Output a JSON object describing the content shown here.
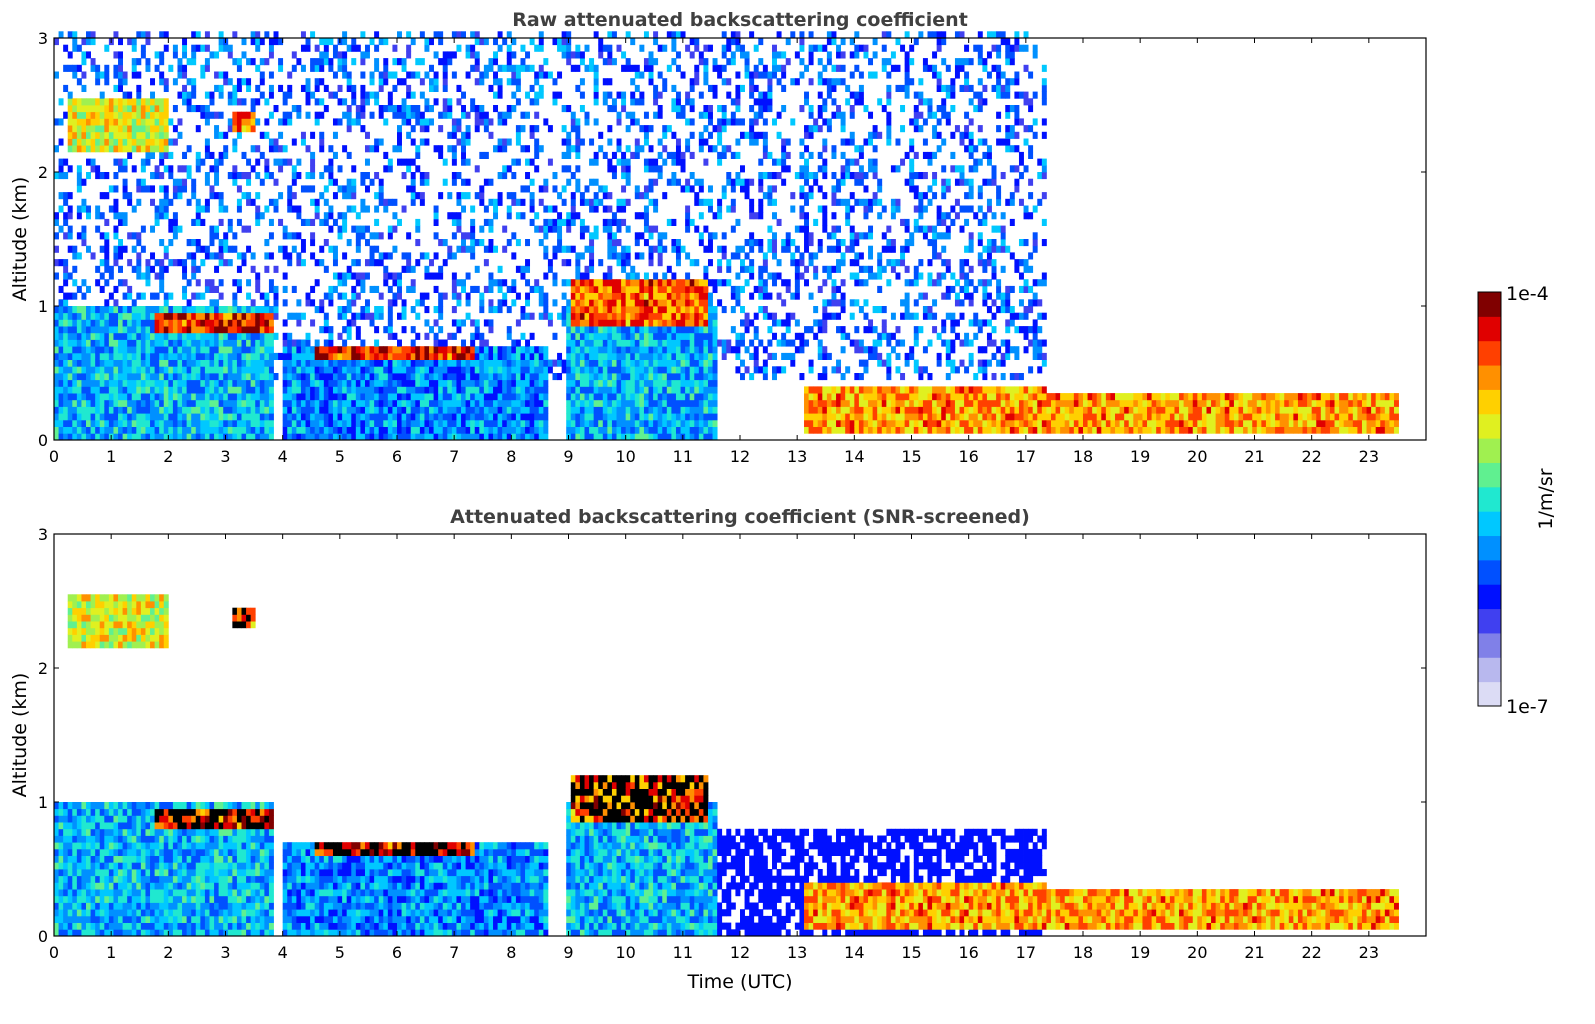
{
  "chart_data": [
    {
      "type": "heatmap",
      "title": "Raw attenuated backscattering coefficient",
      "xlabel": "",
      "ylabel": "Altitude (km)",
      "xlim": [
        0,
        24
      ],
      "ylim": [
        0,
        3
      ],
      "xticks": [
        "0",
        "1",
        "2",
        "3",
        "4",
        "5",
        "6",
        "7",
        "8",
        "9",
        "10",
        "11",
        "12",
        "13",
        "14",
        "15",
        "16",
        "17",
        "18",
        "19",
        "20",
        "21",
        "22",
        "23"
      ],
      "yticks": [
        "0",
        "1",
        "2",
        "3"
      ],
      "layers": [
        {
          "name": "elevated layer",
          "x0": 1.7,
          "x1": 3.8,
          "y0": 0.8,
          "y1": 0.95,
          "level": 1.0
        },
        {
          "name": "elevated layer",
          "x0": 4.5,
          "x1": 7.3,
          "y0": 0.55,
          "y1": 0.7,
          "level": 1.0
        },
        {
          "name": "elevated layer",
          "x0": 9.0,
          "x1": 11.4,
          "y0": 0.85,
          "y1": 1.2,
          "level": 0.95
        },
        {
          "name": "upper cloud",
          "x0": 0.2,
          "x1": 2.0,
          "y0": 2.15,
          "y1": 2.5,
          "level": 0.8
        },
        {
          "name": "upper cloud",
          "x0": 3.1,
          "x1": 3.5,
          "y0": 2.3,
          "y1": 2.4,
          "level": 0.95
        },
        {
          "name": "boundary layer",
          "x0": 0.0,
          "x1": 3.8,
          "y0": 0.0,
          "y1": 1.0,
          "level": 0.55
        },
        {
          "name": "boundary layer",
          "x0": 4.0,
          "x1": 8.6,
          "y0": 0.0,
          "y1": 0.7,
          "level": 0.5
        },
        {
          "name": "boundary layer",
          "x0": 8.9,
          "x1": 11.6,
          "y0": 0.0,
          "y1": 1.0,
          "level": 0.55
        },
        {
          "name": "low cloud",
          "x0": 13.1,
          "x1": 17.3,
          "y0": 0.05,
          "y1": 0.35,
          "level": 0.9
        },
        {
          "name": "low cloud",
          "x0": 17.3,
          "x1": 23.5,
          "y0": 0.02,
          "y1": 0.3,
          "level": 0.9
        }
      ]
    },
    {
      "type": "heatmap",
      "title": "Attenuated backscattering coefficient (SNR-screened)",
      "xlabel": "Time (UTC)",
      "ylabel": "Altitude (km)",
      "xlim": [
        0,
        24
      ],
      "ylim": [
        0,
        3
      ],
      "xticks": [
        "0",
        "1",
        "2",
        "3",
        "4",
        "5",
        "6",
        "7",
        "8",
        "9",
        "10",
        "11",
        "12",
        "13",
        "14",
        "15",
        "16",
        "17",
        "18",
        "19",
        "20",
        "21",
        "22",
        "23"
      ],
      "yticks": [
        "0",
        "1",
        "2",
        "3"
      ],
      "saturated_color": "#000000"
    }
  ],
  "colorbar": {
    "label": "1/m/sr",
    "max_label": "1e-4",
    "min_label": "1e-7",
    "colors": [
      "#dcdcf5",
      "#b8b8ee",
      "#8080e8",
      "#4040f0",
      "#0010ff",
      "#0050ff",
      "#0090ff",
      "#00c8ff",
      "#20e8d0",
      "#60f090",
      "#a0f050",
      "#e0f020",
      "#ffd000",
      "#ff9000",
      "#ff4000",
      "#e00000",
      "#800000"
    ]
  }
}
